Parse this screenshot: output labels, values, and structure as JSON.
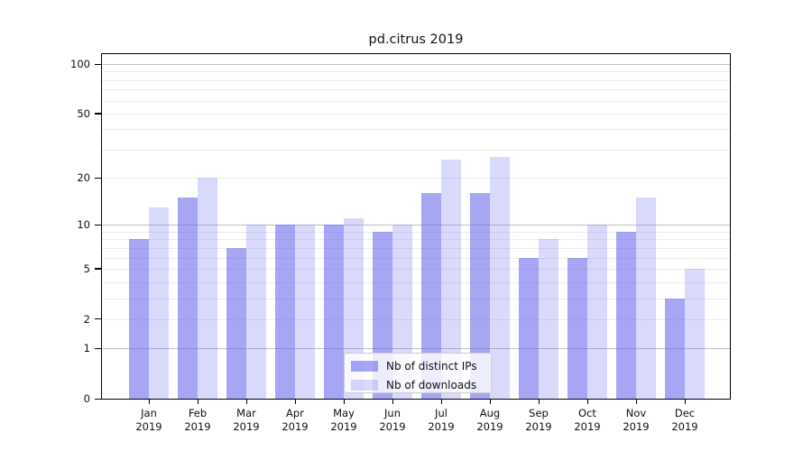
{
  "chart_data": {
    "type": "bar",
    "title": "pd.citrus 2019",
    "categories": [
      "Jan",
      "Feb",
      "Mar",
      "Apr",
      "May",
      "Jun",
      "Jul",
      "Aug",
      "Sep",
      "Oct",
      "Nov",
      "Dec"
    ],
    "year": "2019",
    "series": [
      {
        "name": "Nb of distinct IPs",
        "color_base": "#6666ee",
        "alpha": 0.58,
        "color_rendered": "#a7a7f0",
        "values": [
          8,
          15,
          7,
          10,
          10,
          9,
          16,
          16,
          6,
          6,
          9,
          3
        ]
      },
      {
        "name": "Nb of downloads",
        "color_base": "#6666ee",
        "alpha": 0.25,
        "color_rendered": "#d9d9f6",
        "values": [
          13,
          20,
          10,
          10,
          11,
          10,
          26,
          27,
          8,
          10,
          15,
          5
        ]
      }
    ],
    "yscale": "log10(value+1)",
    "yticks": [
      0,
      1,
      2,
      5,
      10,
      20,
      50,
      100
    ],
    "ylim": [
      0,
      115
    ],
    "grid": {
      "on": true,
      "minor_values": [
        2,
        3,
        4,
        5,
        6,
        7,
        8,
        9,
        20,
        30,
        40,
        50,
        60,
        70,
        80,
        90
      ],
      "decade_values": [
        1,
        10,
        100
      ],
      "minor_color": "#ececec",
      "decade_color": "#c0c0c0"
    },
    "legend_position": "lower center",
    "xlabel": "",
    "ylabel": ""
  }
}
